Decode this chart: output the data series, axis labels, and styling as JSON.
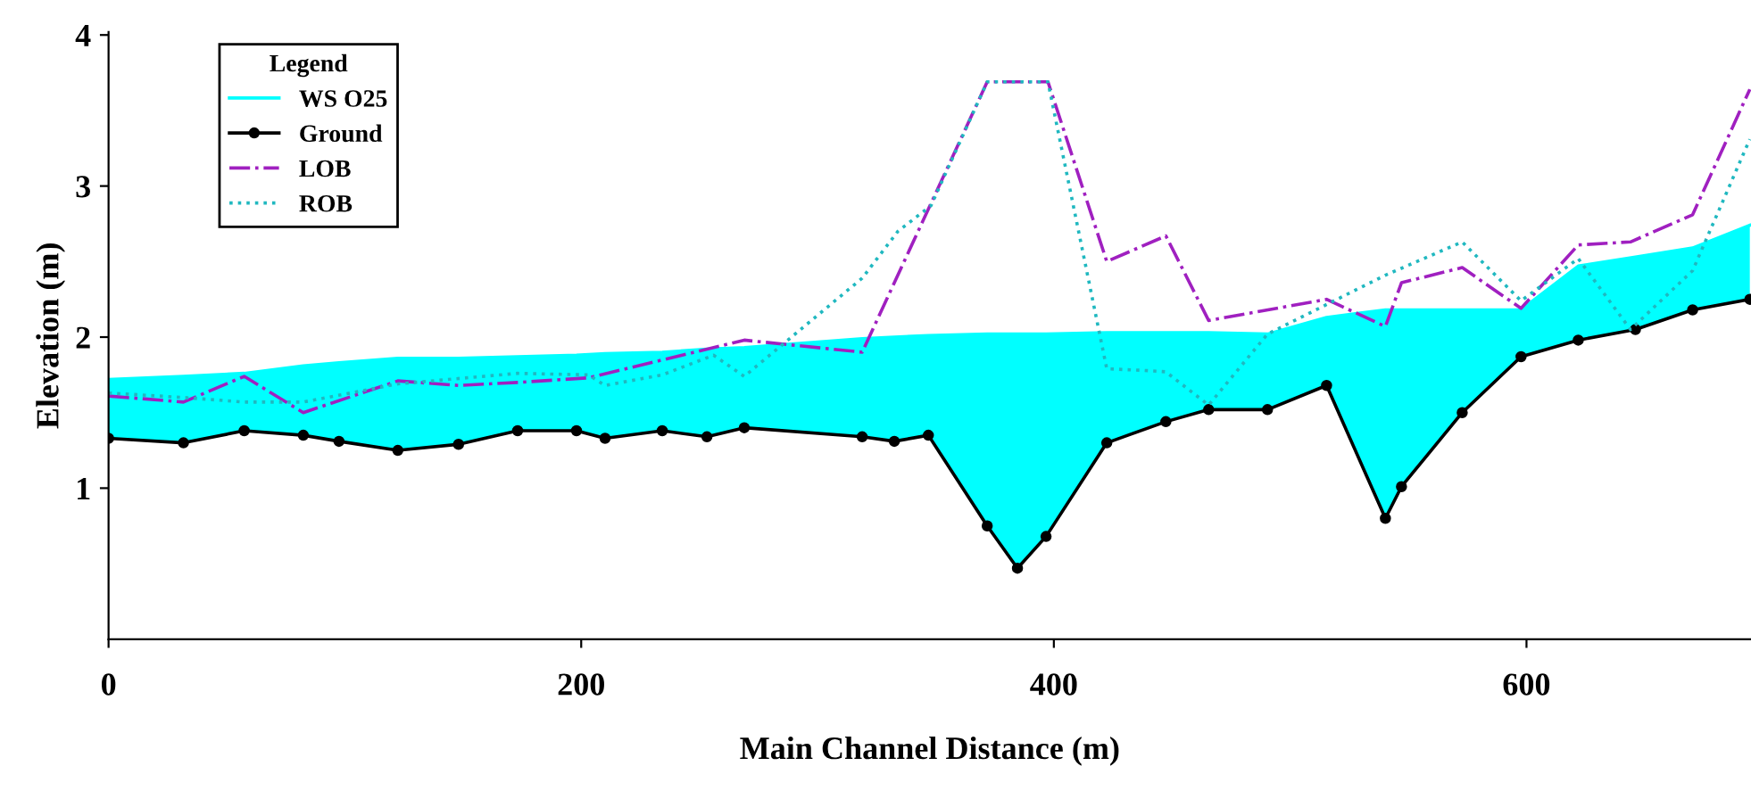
{
  "chart_data": {
    "type": "line",
    "xlabel": "Main Channel Distance (m)",
    "ylabel": "Elevation (m)",
    "legend_title": "Legend",
    "xlim": [
      0,
      695
    ],
    "ylim": [
      0,
      4.02
    ],
    "xticks": [
      0,
      200,
      400,
      600
    ],
    "yticks": [
      1,
      2,
      3,
      4
    ],
    "grid": false,
    "legend": "top left",
    "series": [
      {
        "name": "WS O25",
        "type": "area",
        "color": "#00ffff",
        "marker": "none",
        "line_style": "solid",
        "x": [
          0,
          31.7,
          57.4,
          82.4,
          97.5,
          122.4,
          148.1,
          173.1,
          198,
          210.1,
          234.3,
          253.2,
          269,
          318.9,
          332.5,
          346.9,
          371.8,
          384.6,
          396.7,
          422.4,
          447.4,
          465.5,
          490.4,
          515.4,
          540.3,
          547.1,
          572.8,
          597.7,
          621.9,
          646.1,
          670.3,
          694.5
        ],
        "values": [
          1.72,
          1.74,
          1.76,
          1.81,
          1.83,
          1.86,
          1.86,
          1.87,
          1.88,
          1.89,
          1.9,
          1.92,
          1.93,
          1.99,
          2.0,
          2.01,
          2.02,
          2.02,
          2.02,
          2.03,
          2.03,
          2.03,
          2.02,
          2.13,
          2.18,
          2.18,
          2.18,
          2.18,
          2.47,
          2.53,
          2.59,
          2.74
        ]
      },
      {
        "name": "Ground",
        "color": "#000000",
        "marker": "circle",
        "line_style": "solid",
        "x": [
          0,
          31.7,
          57.4,
          82.4,
          97.5,
          122.4,
          148.1,
          173.1,
          198,
          210.1,
          234.3,
          253.2,
          269,
          318.9,
          332.5,
          346.9,
          371.8,
          384.6,
          396.7,
          422.4,
          447.4,
          465.5,
          490.4,
          515.4,
          540.3,
          547.1,
          572.8,
          597.7,
          621.9,
          646.1,
          670.3,
          694.5
        ],
        "values": [
          1.33,
          1.3,
          1.38,
          1.35,
          1.31,
          1.25,
          1.29,
          1.38,
          1.38,
          1.33,
          1.38,
          1.34,
          1.4,
          1.34,
          1.31,
          1.35,
          0.75,
          0.47,
          0.68,
          1.3,
          1.44,
          1.52,
          1.52,
          1.68,
          0.8,
          1.01,
          1.5,
          1.87,
          1.98,
          2.05,
          2.18,
          2.25
        ]
      },
      {
        "name": "LOB",
        "color": "#a020c0",
        "marker": "none",
        "line_style": "dashdot",
        "x": [
          0,
          31.7,
          57.4,
          82.4,
          122.4,
          148.1,
          173.1,
          203,
          269,
          318.9,
          371.8,
          397.5,
          422.4,
          447.4,
          465.5,
          515.4,
          540.3,
          547.1,
          572.8,
          597.7,
          621.9,
          644,
          670.3,
          694.5
        ],
        "values": [
          1.61,
          1.57,
          1.74,
          1.5,
          1.71,
          1.68,
          1.7,
          1.73,
          1.98,
          1.9,
          3.69,
          3.69,
          2.5,
          2.67,
          2.11,
          2.25,
          2.07,
          2.36,
          2.46,
          2.19,
          2.61,
          2.63,
          2.81,
          3.64
        ]
      },
      {
        "name": "ROB",
        "color": "#20b8c0",
        "marker": "none",
        "line_style": "dotted",
        "x": [
          0,
          31.7,
          57.4,
          82.4,
          122.4,
          173.1,
          203,
          210.1,
          234.3,
          256,
          269,
          318.9,
          334,
          348,
          371.8,
          397.5,
          422.4,
          437.5,
          447.4,
          465.5,
          490.4,
          540.3,
          572.8,
          597.7,
          621.9,
          644,
          670.3,
          694.5
        ],
        "values": [
          1.63,
          1.6,
          1.57,
          1.57,
          1.69,
          1.76,
          1.75,
          1.68,
          1.75,
          1.88,
          1.74,
          2.39,
          2.7,
          2.87,
          3.69,
          3.69,
          1.79,
          1.78,
          1.77,
          1.55,
          2.02,
          2.41,
          2.63,
          2.24,
          2.52,
          2.05,
          2.44,
          3.31
        ]
      }
    ]
  }
}
